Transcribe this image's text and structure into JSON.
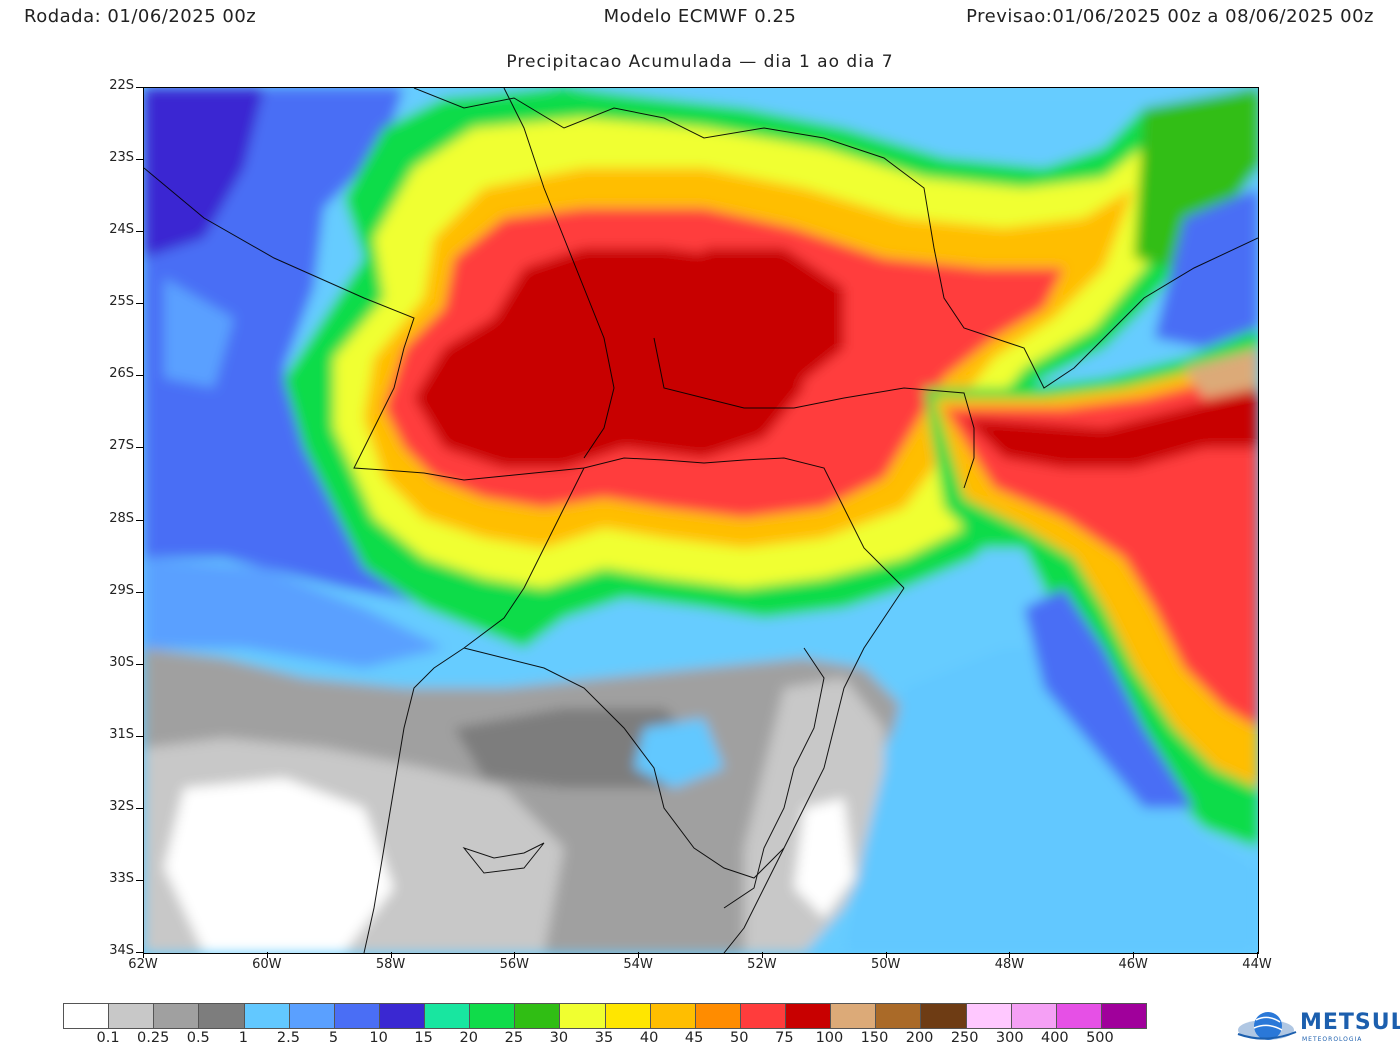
{
  "header": {
    "left_label": "Rodada:",
    "left_value": "01/06/2025 00z",
    "center": "Modelo ECMWF 0.25",
    "right_label": "Previsao:",
    "right_value": "01/06/2025 00z a 08/06/2025 00z"
  },
  "subtitle": "Precipitacao Acumulada — dia 1 ao dia 7",
  "axes": {
    "latitudes": [
      "22S",
      "23S",
      "24S",
      "25S",
      "26S",
      "27S",
      "28S",
      "29S",
      "30S",
      "31S",
      "32S",
      "33S",
      "34S"
    ],
    "longitudes": [
      "62W",
      "60W",
      "58W",
      "56W",
      "54W",
      "52W",
      "50W",
      "48W",
      "46W",
      "44W"
    ]
  },
  "legend": {
    "colors": [
      "#ffffff",
      "#c8c8c8",
      "#a0a0a0",
      "#7d7d7d",
      "#62c8ff",
      "#5aa0ff",
      "#4a6ef5",
      "#3a28d2",
      "#18e6a0",
      "#10dc4a",
      "#30be14",
      "#f0ff30",
      "#ffe600",
      "#ffbe00",
      "#ff8c00",
      "#ff3c3c",
      "#c80000",
      "#dcaa78",
      "#aa6a28",
      "#6e3c14",
      "#ffc8ff",
      "#f5a0f5",
      "#e650e6",
      "#a0009b"
    ],
    "labels": [
      "0.1",
      "0.25",
      "0.5",
      "1",
      "2.5",
      "5",
      "10",
      "15",
      "20",
      "25",
      "30",
      "35",
      "40",
      "45",
      "50",
      "75",
      "100",
      "150",
      "200",
      "250",
      "300",
      "400",
      "500"
    ]
  },
  "logo": {
    "name": "METSUL",
    "sub": "METEOROLOGIA"
  }
}
